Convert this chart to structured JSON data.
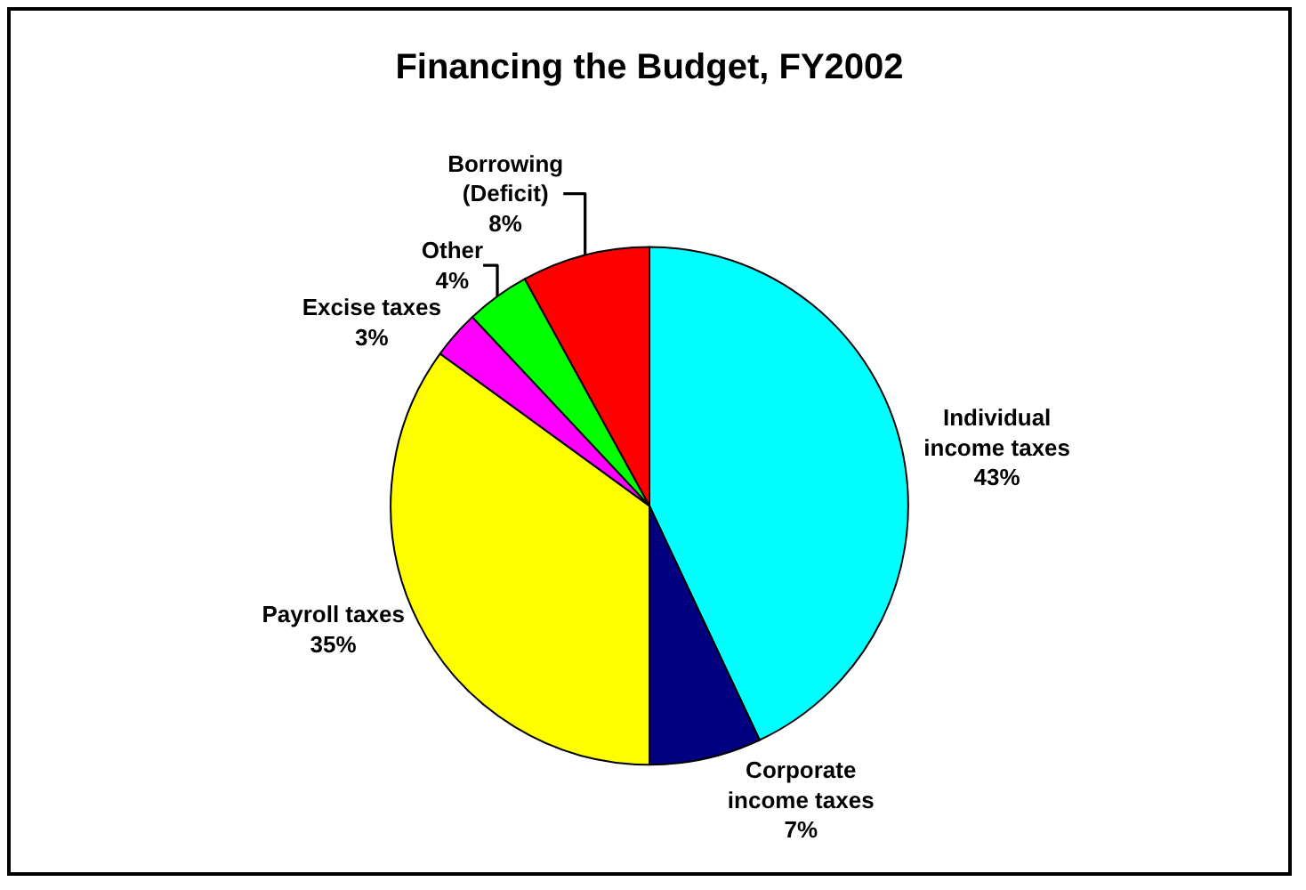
{
  "chart_data": {
    "type": "pie",
    "title": "Financing the Budget, FY2002",
    "categories": [
      "Individual\nincome taxes",
      "Corporate\nincome taxes",
      "Payroll taxes",
      "Excise taxes",
      "Other",
      "Borrowing\n(Deficit)"
    ],
    "values": [
      43,
      7,
      35,
      3,
      4,
      8
    ],
    "value_labels": [
      "43%",
      "7%",
      "35%",
      "3%",
      "4%",
      "8%"
    ],
    "colors": [
      "#00ffff",
      "#000080",
      "#ffff00",
      "#ff00ff",
      "#00ff00",
      "#ff0000"
    ],
    "legend": false
  }
}
